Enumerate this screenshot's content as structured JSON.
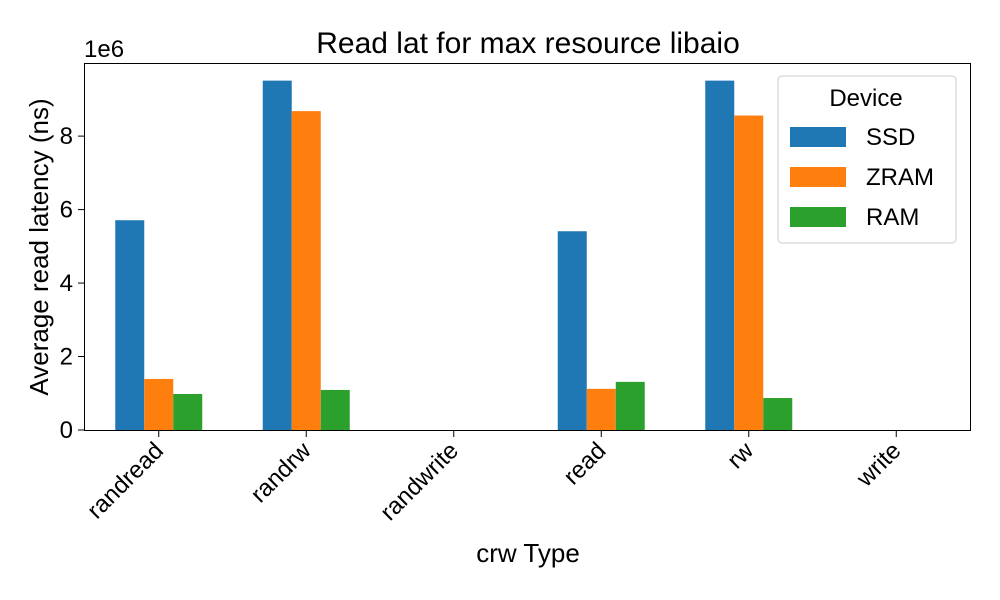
{
  "chart_data": {
    "type": "bar",
    "title": "Read lat for max resource libaio",
    "xlabel": "crw Type",
    "ylabel": "Average read latency (ns)",
    "y_offset_label": "1e6",
    "categories": [
      "randread",
      "randrw",
      "randwrite",
      "read",
      "rw",
      "write"
    ],
    "series": [
      {
        "name": "SSD",
        "color": "#1f77b4",
        "values": [
          5710000,
          9510000,
          0,
          5410000,
          9510000,
          0
        ]
      },
      {
        "name": "ZRAM",
        "color": "#ff7f0e",
        "values": [
          1390000,
          8680000,
          0,
          1120000,
          8560000,
          0
        ]
      },
      {
        "name": "RAM",
        "color": "#2ca02c",
        "values": [
          980000,
          1090000,
          0,
          1310000,
          870000,
          0
        ]
      }
    ],
    "yticks": [
      0,
      2000000,
      4000000,
      6000000,
      8000000
    ],
    "ytick_labels": [
      "0",
      "2",
      "4",
      "6",
      "8"
    ],
    "ylim": [
      0,
      9990000
    ],
    "grid": false,
    "legend": {
      "title": "Device",
      "placement": "top-right"
    }
  }
}
